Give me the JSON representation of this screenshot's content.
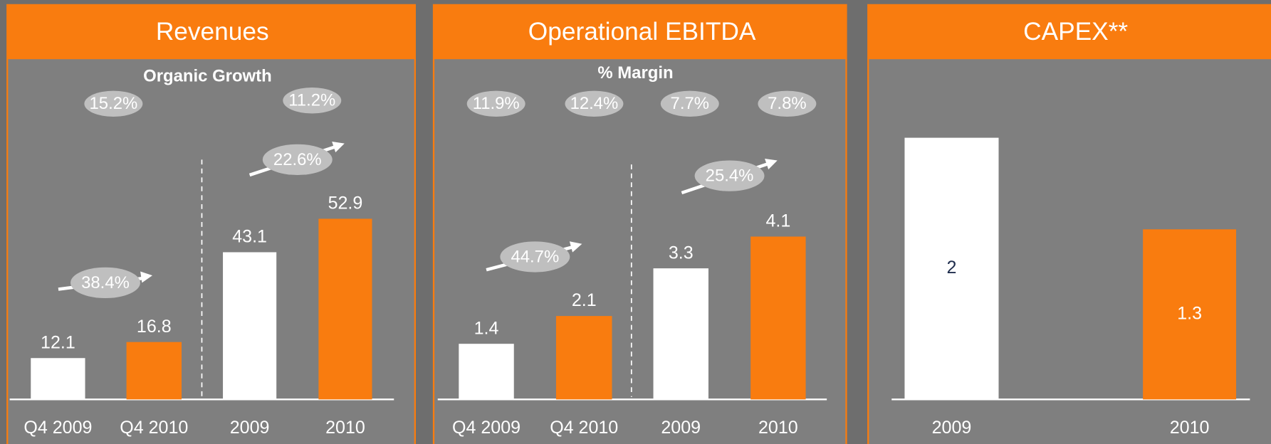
{
  "chart_data": [
    {
      "type": "bar",
      "title": "Revenues",
      "subtitle": "Organic Growth",
      "categories": [
        "Q4 2009",
        "Q4 2010",
        "2009",
        "2010"
      ],
      "values": [
        12.1,
        16.8,
        43.1,
        52.9
      ],
      "colors": [
        "#ffffff",
        "#f97c0f",
        "#ffffff",
        "#f97c0f"
      ],
      "top_labels": [
        "15.2%",
        "11.2%"
      ],
      "growth_labels": [
        "38.4%",
        "22.6%"
      ]
    },
    {
      "type": "bar",
      "title": "Operational EBITDA",
      "subtitle": "% Margin",
      "categories": [
        "Q4 2009",
        "Q4 2010",
        "2009",
        "2010"
      ],
      "values": [
        1.4,
        2.1,
        3.3,
        4.1
      ],
      "colors": [
        "#ffffff",
        "#f97c0f",
        "#ffffff",
        "#f97c0f"
      ],
      "top_labels": [
        "11.9%",
        "12.4%",
        "7.7%",
        "7.8%"
      ],
      "growth_labels": [
        "44.7%",
        "25.4%"
      ]
    },
    {
      "type": "bar",
      "title": "CAPEX**",
      "categories": [
        "2009",
        "2010"
      ],
      "values": [
        2.0,
        1.3
      ],
      "colors": [
        "#ffffff",
        "#f97c0f"
      ]
    }
  ]
}
